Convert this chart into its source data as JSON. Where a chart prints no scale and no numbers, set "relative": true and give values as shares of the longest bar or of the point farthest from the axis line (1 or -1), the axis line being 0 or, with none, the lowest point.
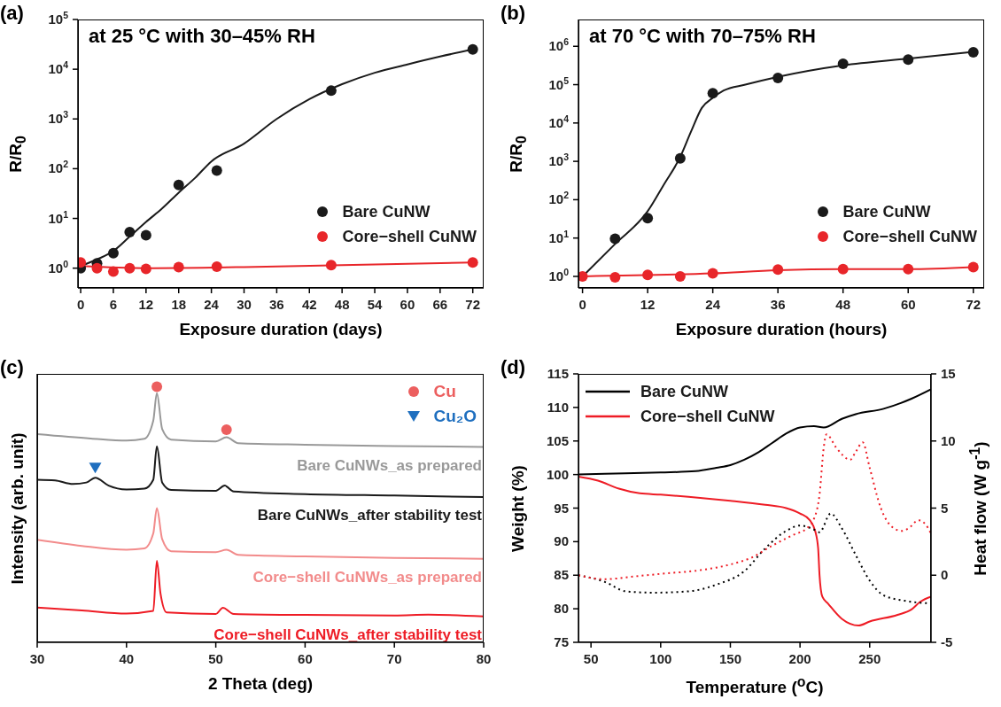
{
  "chart_data": [
    {
      "type": "scatter",
      "title": "(a)",
      "annotations": [
        "at 25 °C with 30–45% RH"
      ],
      "xlabel": "Exposure duration (days)",
      "ylabel": "R/R$_{0}$",
      "log": "y",
      "xlim": [
        -0.5,
        74
      ],
      "xticks": [
        0,
        6,
        12,
        18,
        24,
        30,
        36,
        42,
        48,
        54,
        60,
        66,
        72
      ],
      "ylim": [
        0.4,
        100000
      ],
      "yticks": [
        {
          "value": 1,
          "label": "10$^{0}$"
        },
        {
          "value": 10,
          "label": "10$^{1}$"
        },
        {
          "value": 100,
          "label": "10$^{2}$"
        },
        {
          "value": 1000,
          "label": "10$^{3}$"
        },
        {
          "value": 10000,
          "label": "10$^{4}$"
        },
        {
          "value": 100000,
          "label": "10$^{5}$"
        }
      ],
      "legend": "bottom right",
      "series": [
        {
          "name": "Bare CuNW",
          "marker": "circle",
          "color": "#1a1a1a",
          "x": [
            0,
            3,
            6,
            9,
            12,
            18,
            25,
            46,
            72
          ],
          "values": [
            1.0,
            1.25,
            2.0,
            5.3,
            4.6,
            47,
            92,
            3700,
            25000
          ]
        },
        {
          "name": "Core−shell CuNW",
          "marker": "circle",
          "color": "#e8262a",
          "x": [
            0,
            3,
            6,
            9,
            12,
            18,
            25,
            46,
            72
          ],
          "values": [
            1.3,
            1.0,
            0.85,
            1.0,
            0.97,
            1.05,
            1.07,
            1.15,
            1.3
          ]
        },
        {
          "type": "line",
          "color": "#1a1a1a",
          "x": [
            0,
            3,
            6,
            9,
            12,
            15,
            18,
            21,
            24,
            30,
            36,
            42,
            48,
            54,
            60,
            66,
            72
          ],
          "values": [
            1.1,
            1.5,
            2.2,
            4.3,
            8.5,
            16,
            33,
            65,
            140,
            320,
            1000,
            2500,
            5000,
            8500,
            12500,
            18000,
            25000
          ]
        },
        {
          "type": "line",
          "color": "#e8262a",
          "x": [
            0,
            12,
            30,
            48,
            72
          ],
          "values": [
            1.1,
            1.0,
            1.05,
            1.15,
            1.3
          ]
        }
      ]
    },
    {
      "type": "scatter",
      "title": "(b)",
      "annotations": [
        "at 70 °C with 70–75% RH"
      ],
      "xlabel": "Exposure duration (hours)",
      "ylabel": "R/R$_{0}$",
      "log": "y",
      "xlim": [
        -0.75,
        74
      ],
      "xticks": [
        0,
        12,
        24,
        36,
        48,
        60,
        72
      ],
      "ylim": [
        0.5,
        5000000
      ],
      "yticks": [
        {
          "value": 1,
          "label": "10$^{0}$"
        },
        {
          "value": 10,
          "label": "10$^{1}$"
        },
        {
          "value": 100,
          "label": "10$^{2}$"
        },
        {
          "value": 1000,
          "label": "10$^{3}$"
        },
        {
          "value": 10000,
          "label": "10$^{4}$"
        },
        {
          "value": 100000,
          "label": "10$^{5}$"
        },
        {
          "value": 1000000,
          "label": "10$^{6}$"
        }
      ],
      "legend": "bottom right",
      "series": [
        {
          "name": "Bare CuNW",
          "marker": "circle",
          "color": "#1a1a1a",
          "x": [
            6,
            12,
            18,
            24,
            36,
            48,
            60,
            72
          ],
          "values": [
            9.6,
            33,
            1200,
            60000,
            150000,
            350000,
            450000,
            700000
          ]
        },
        {
          "name": "Core−shell CuNW",
          "marker": "circle",
          "color": "#e8262a",
          "x": [
            0,
            6,
            12,
            18,
            24,
            36,
            48,
            60,
            72
          ],
          "values": [
            1.0,
            0.95,
            1.1,
            1.0,
            1.2,
            1.5,
            1.55,
            1.55,
            1.75
          ]
        },
        {
          "type": "line",
          "color": "#1a1a1a",
          "x": [
            0,
            6,
            12,
            15,
            18,
            20,
            22,
            24,
            26,
            30,
            36,
            48,
            60,
            72
          ],
          "values": [
            1.0,
            7,
            50,
            250,
            1300,
            6000,
            25000,
            45000,
            70000,
            100000,
            160000,
            320000,
            480000,
            720000
          ]
        },
        {
          "type": "line",
          "color": "#e8262a",
          "x": [
            0,
            24,
            36,
            48,
            60,
            72
          ],
          "values": [
            1.0,
            1.2,
            1.45,
            1.55,
            1.55,
            1.75
          ]
        }
      ]
    },
    {
      "type": "line",
      "title": "(c)",
      "xlabel": "2 Theta (deg)",
      "ylabel": "Intensity (arb. unit)",
      "relative": true,
      "xlim": [
        30,
        80
      ],
      "xticks": [
        30,
        40,
        50,
        60,
        70,
        80
      ],
      "legend": "top right",
      "series": [
        {
          "name": "Bare CuNWs_as prepared",
          "color": "#999999",
          "x": [
            30,
            36,
            40,
            42,
            43,
            43.4,
            44,
            45,
            50,
            51.2,
            52.5,
            60,
            70,
            80
          ],
          "values": [
            0.814,
            0.797,
            0.789,
            0.796,
            0.867,
            0.975,
            0.834,
            0.793,
            0.786,
            0.802,
            0.779,
            0.773,
            0.768,
            0.764
          ]
        },
        {
          "name": "Bare CuNWs_after stability test",
          "color": "#1a1a1a",
          "x": [
            30,
            32,
            34,
            35.5,
            36.5,
            38,
            40,
            42,
            43,
            43.4,
            44,
            45,
            50,
            51,
            52,
            60,
            70,
            80
          ],
          "values": [
            0.636,
            0.633,
            0.619,
            0.625,
            0.644,
            0.613,
            0.598,
            0.601,
            0.636,
            0.767,
            0.625,
            0.596,
            0.593,
            0.613,
            0.59,
            0.58,
            0.574,
            0.568
          ]
        },
        {
          "name": "Core−shell CuNWs_as prepared",
          "color": "#f28b8b",
          "x": [
            30,
            35,
            40,
            42,
            43,
            43.4,
            44,
            45,
            50,
            51.2,
            52.5,
            60,
            70,
            80
          ],
          "values": [
            0.401,
            0.377,
            0.362,
            0.367,
            0.426,
            0.525,
            0.403,
            0.356,
            0.353,
            0.362,
            0.342,
            0.336,
            0.33,
            0.327
          ]
        },
        {
          "name": "Core−shell CuNWs_after stability test",
          "color": "#ee1c25",
          "x": [
            30,
            35,
            40,
            43,
            43.4,
            43.8,
            44.5,
            50,
            50.8,
            52,
            60,
            70,
            73.8,
            80
          ],
          "values": [
            0.136,
            0.125,
            0.113,
            0.123,
            0.319,
            0.193,
            0.117,
            0.111,
            0.135,
            0.111,
            0.107,
            0.105,
            0.108,
            0.101
          ]
        },
        {
          "name": "Cu",
          "type": "scatter",
          "marker": "circle",
          "color": "#ec5f5f",
          "x": [
            43.4,
            51.2
          ],
          "values": [
            1.0,
            0.832
          ]
        },
        {
          "name": "Cu₂O",
          "type": "scatter",
          "marker": "triangle",
          "color": "#1f6fbf",
          "x": [
            36.5
          ],
          "values": [
            0.682
          ]
        }
      ]
    },
    {
      "type": "line",
      "title": "(d)",
      "xlabel": "Temperature ($^{o}$C)",
      "ylabel": "Weight (%)",
      "y2label": "Heat flow (W g$^{-1}$)",
      "xlim": [
        41,
        294
      ],
      "xticks": [
        50,
        100,
        150,
        200,
        250
      ],
      "ylim": [
        75,
        115
      ],
      "yticks": [
        75,
        80,
        85,
        90,
        95,
        100,
        105,
        110,
        115
      ],
      "y2lim": [
        -5,
        15
      ],
      "y2ticks": [
        -5,
        0,
        5,
        10,
        15
      ],
      "legend": "top left",
      "series": [
        {
          "name": "Bare CuNW",
          "line_style": "solid",
          "color": "#000000",
          "x": [
            41,
            60,
            100,
            125,
            140,
            150,
            160,
            170,
            180,
            190,
            200,
            210,
            217,
            230,
            240,
            260,
            280,
            294
          ],
          "values": [
            100.0,
            100.1,
            100.3,
            100.5,
            101,
            101.4,
            102.2,
            103.3,
            104.7,
            106.1,
            107.0,
            107.2,
            107.0,
            108.3,
            109.0,
            109.8,
            111.3,
            112.7
          ]
        },
        {
          "name": "Core−shell CuNW",
          "line_style": "solid",
          "color": "#ee1c25",
          "x": [
            41,
            55,
            70,
            85,
            100,
            130,
            150,
            175,
            190,
            200,
            207,
            211,
            213,
            214,
            216,
            220,
            230,
            242,
            250,
            270,
            280,
            286,
            294
          ],
          "values": [
            99.7,
            99.1,
            97.9,
            97.2,
            97.0,
            96.5,
            96.1,
            95.5,
            95.0,
            94.2,
            93.2,
            91.5,
            89,
            85,
            81.8,
            80.8,
            78.5,
            77.5,
            78.1,
            79.1,
            79.9,
            81.0,
            81.8
          ]
        },
        {
          "axis": "y2",
          "line_style": "dotted",
          "color": "#000000",
          "x": [
            41,
            60,
            75,
            95,
            120,
            140,
            160,
            175,
            190,
            200,
            210,
            214,
            222,
            230,
            240,
            250,
            260,
            275,
            294
          ],
          "values": [
            0.0,
            -0.5,
            -1.2,
            -1.3,
            -1.2,
            -0.7,
            0.3,
            2.0,
            3.3,
            3.7,
            3.4,
            3.2,
            4.6,
            3.5,
            1.5,
            -0.4,
            -1.5,
            -1.9,
            -2.1
          ]
        },
        {
          "axis": "y2",
          "line_style": "dotted",
          "color": "#ee1c25",
          "x": [
            41,
            60,
            80,
            100,
            130,
            150,
            165,
            180,
            195,
            205,
            210,
            214,
            217,
            219,
            226,
            236,
            240,
            245,
            250,
            258,
            265,
            273,
            278,
            285,
            290,
            294
          ],
          "values": [
            0.0,
            -0.3,
            -0.1,
            0.1,
            0.4,
            0.8,
            1.3,
            2.2,
            3.0,
            3.5,
            4.2,
            6,
            9.5,
            10.5,
            9.5,
            8.6,
            9.2,
            9.9,
            8.0,
            5.0,
            3.7,
            3.3,
            3.5,
            4.1,
            3.8,
            3.1
          ]
        }
      ]
    }
  ]
}
